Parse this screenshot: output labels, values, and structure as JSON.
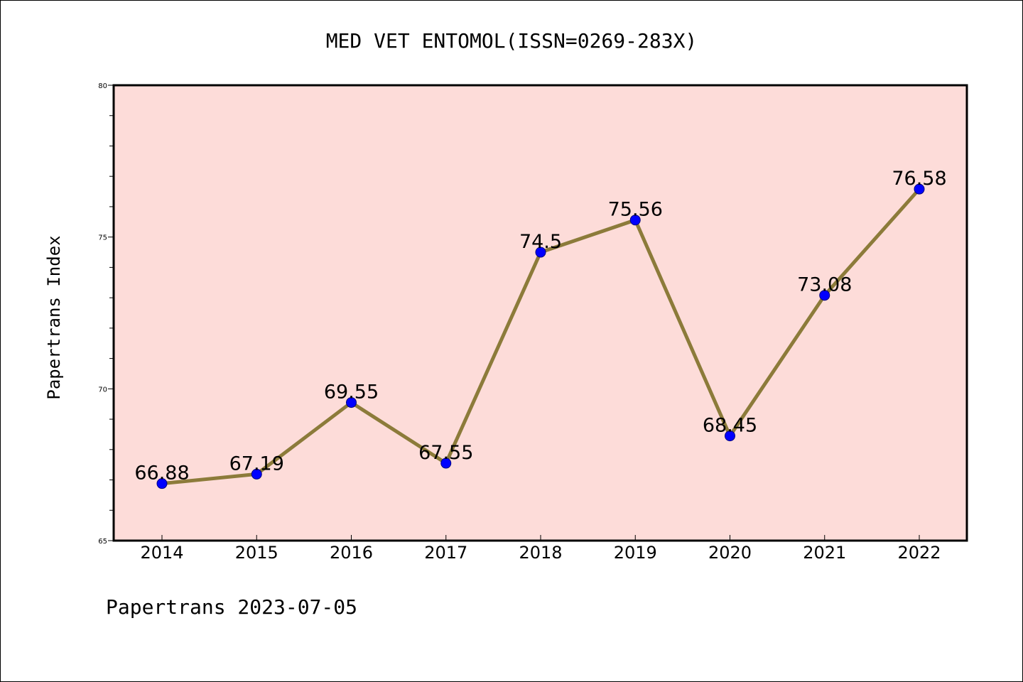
{
  "chart_data": {
    "type": "line",
    "title": "MED VET ENTOMOL(ISSN=0269-283X)",
    "xlabel": "",
    "ylabel": "Papertrans Index",
    "categories": [
      "2014",
      "2015",
      "2016",
      "2017",
      "2018",
      "2019",
      "2020",
      "2021",
      "2022"
    ],
    "series": [
      {
        "name": "Papertrans Index",
        "values": [
          66.88,
          67.19,
          69.55,
          67.55,
          74.5,
          75.56,
          68.45,
          73.08,
          76.58
        ],
        "labels": [
          "66.88",
          "67.19",
          "69.55",
          "67.55",
          "74.5",
          "75.56",
          "68.45",
          "73.08",
          "76.58"
        ]
      }
    ],
    "ylim": [
      65,
      80
    ],
    "yticks": [
      "65",
      "70",
      "75",
      "80"
    ],
    "y_minor_step": 1,
    "grid": false,
    "legend": "none",
    "footer": "Papertrans 2023-07-05"
  },
  "colors": {
    "plot_background": "#fddcd9",
    "line": "#8c7b3a",
    "marker_fill": "#0000ff",
    "marker_edge": "#000080",
    "axes": "#000000"
  }
}
